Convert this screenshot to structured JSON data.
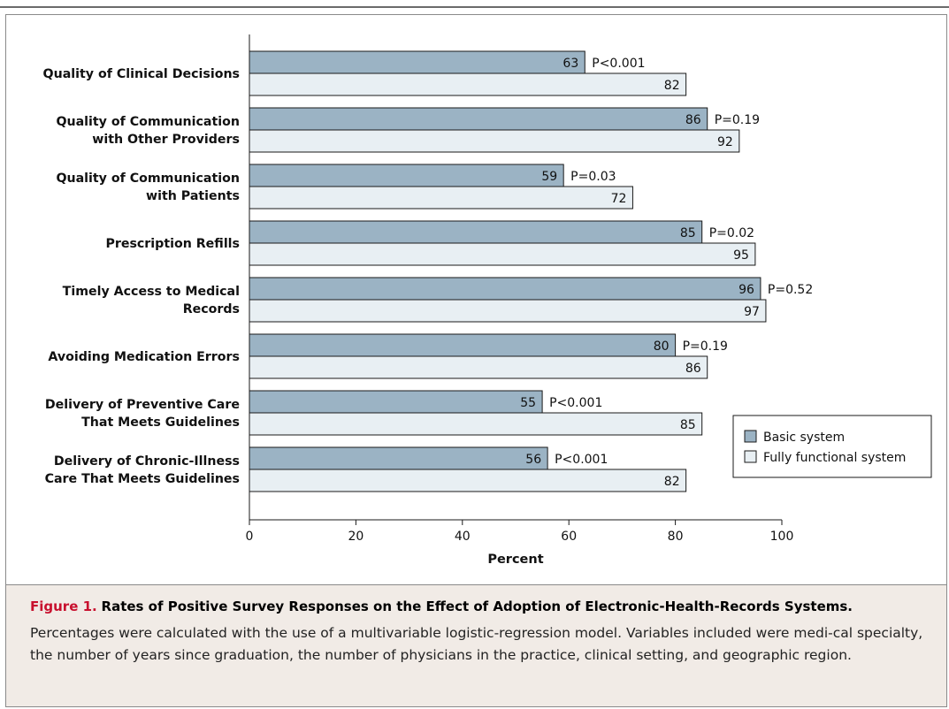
{
  "chart_data": {
    "type": "bar",
    "orientation": "horizontal",
    "categories": [
      [
        "Quality of Clinical Decisions"
      ],
      [
        "Quality of Communication",
        "with Other Providers"
      ],
      [
        "Quality of Communication",
        "with Patients"
      ],
      [
        "Prescription Refills"
      ],
      [
        "Timely Access to Medical",
        "Records"
      ],
      [
        "Avoiding Medication Errors"
      ],
      [
        "Delivery of Preventive Care",
        "That Meets Guidelines"
      ],
      [
        "Delivery of Chronic-Illness",
        "Care That Meets Guidelines"
      ]
    ],
    "series": [
      {
        "name": "Basic system",
        "color": "#9bb3c4",
        "values": [
          63,
          86,
          59,
          85,
          96,
          80,
          55,
          56
        ]
      },
      {
        "name": "Fully functional system",
        "color": "#e8eff3",
        "values": [
          82,
          92,
          72,
          95,
          97,
          86,
          85,
          82
        ]
      }
    ],
    "p_values": [
      "P<0.001",
      "P=0.19",
      "P=0.03",
      "P=0.02",
      "P=0.52",
      "P=0.19",
      "P<0.001",
      "P<0.001"
    ],
    "xlabel": "Percent",
    "xlim": [
      0,
      100
    ],
    "xticks": [
      0,
      20,
      40,
      60,
      80,
      100
    ],
    "legend_position": "right"
  },
  "caption": {
    "label": "Figure 1.",
    "title": "Rates of Positive Survey Responses on the Effect of Adoption of Electronic-Health-Records Systems.",
    "body": "Percentages were calculated with the use of a multivariable logistic-regression model. Variables included were medi-cal specialty, the number of years since graduation, the number of physicians in the practice, clinical setting, and geographic region."
  }
}
